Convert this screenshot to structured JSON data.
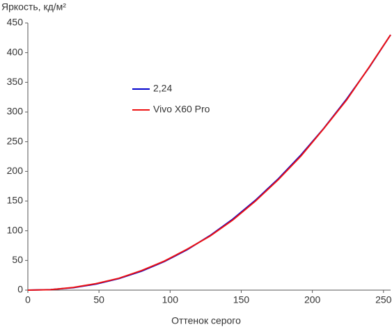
{
  "chart_data": {
    "type": "line",
    "y_axis_label": "Яркость, кд/м²",
    "x_axis_label": "Оттенок серого",
    "x": [
      0,
      16,
      32,
      48,
      64,
      80,
      96,
      112,
      128,
      144,
      160,
      176,
      192,
      208,
      224,
      240,
      255
    ],
    "series": [
      {
        "name": "2,24",
        "color": "#0000cc",
        "values": [
          0,
          0.9,
          4.1,
          10.2,
          19.4,
          32.0,
          48.2,
          68.1,
          91.8,
          119.5,
          151.4,
          187.4,
          227.7,
          272.4,
          321.6,
          375.4,
          430
        ]
      },
      {
        "name": "Vivo X60 Pro",
        "color": "#ee1111",
        "values": [
          0,
          0.8,
          4.5,
          11,
          20,
          33,
          49,
          69,
          91,
          118,
          150,
          186,
          226,
          272,
          320,
          376,
          430
        ]
      }
    ],
    "xlim": [
      0,
      255
    ],
    "xticks": [
      0,
      50,
      100,
      150,
      200,
      250
    ],
    "ylim": [
      0,
      450
    ],
    "yticks": [
      0,
      50,
      100,
      150,
      200,
      250,
      300,
      350,
      400,
      450
    ],
    "grid": false
  }
}
